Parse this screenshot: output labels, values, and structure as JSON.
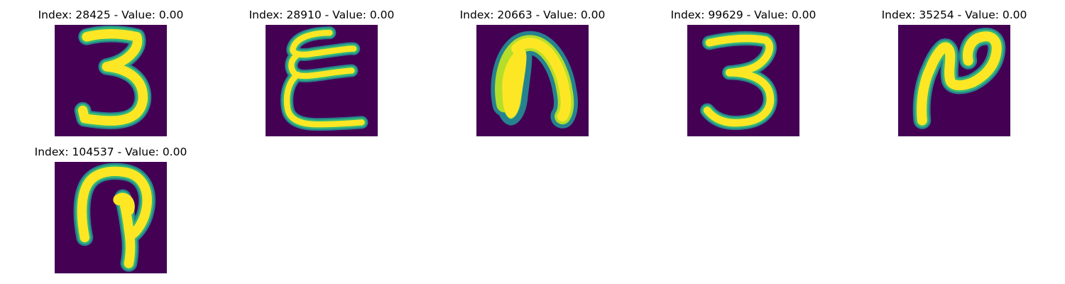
{
  "colors": {
    "background": "#440154",
    "stroke_core": "#fde725",
    "stroke_mid": "#b5de2b",
    "stroke_edge": "#35b779",
    "stroke_outer": "#26828e"
  },
  "panels": [
    {
      "title": "Index: 28425 - Value: 0.00"
    },
    {
      "title": "Index: 28910 - Value: 0.00"
    },
    {
      "title": "Index: 20663 - Value: 0.00"
    },
    {
      "title": "Index: 99629 - Value: 0.00"
    },
    {
      "title": "Index: 35254 - Value: 0.00"
    },
    {
      "title": "Index: 104537 - Value: 0.00"
    }
  ]
}
